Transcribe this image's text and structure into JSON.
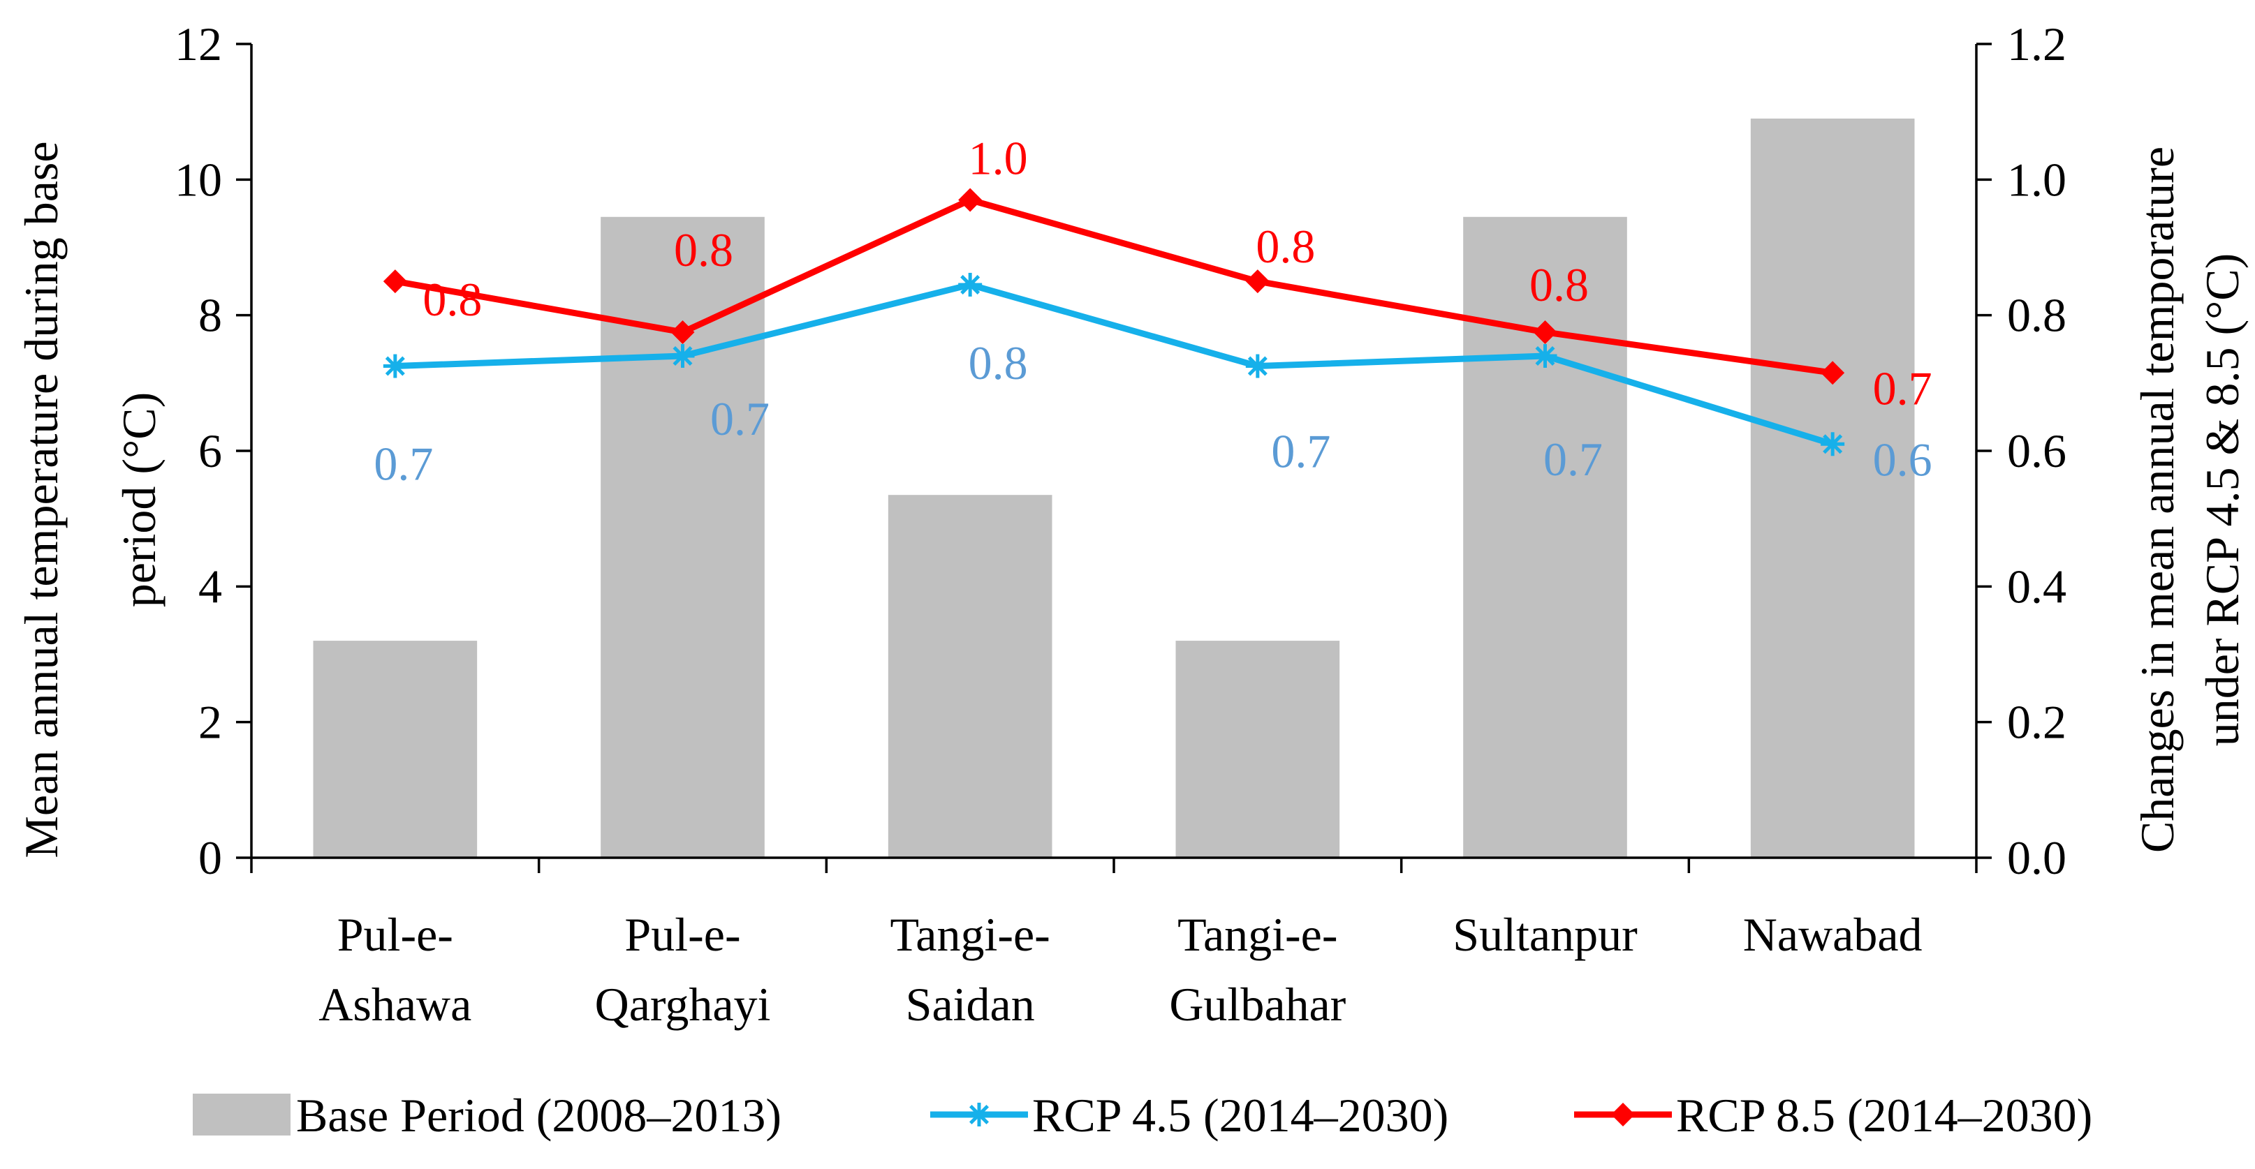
{
  "chart_data": {
    "type": "bar",
    "categories": [
      [
        "Pul-e-",
        "Ashawa"
      ],
      [
        "Pul-e-",
        "Qarghayi"
      ],
      [
        "Tangi-e-",
        "Saidan"
      ],
      [
        "Tangi-e-",
        "Gulbahar"
      ],
      [
        "Sultanpur"
      ],
      [
        "Nawabad"
      ]
    ],
    "series": [
      {
        "name": "Base Period (2008–2013)",
        "type": "bar",
        "axis": "left",
        "color": "#c0c0c0",
        "values": [
          3.2,
          9.45,
          5.35,
          3.2,
          9.45,
          10.9
        ]
      },
      {
        "name": "RCP 4.5 (2014–2030)",
        "type": "line",
        "axis": "right",
        "color": "#16b0ea",
        "label_color": "#5b9bd5",
        "marker": "asterisk",
        "values": [
          0.725,
          0.74,
          0.845,
          0.725,
          0.74,
          0.61
        ],
        "labels": [
          "0.7",
          "0.7",
          "0.8",
          "0.7",
          "0.7",
          "0.6"
        ]
      },
      {
        "name": "RCP 8.5 (2014–2030)",
        "type": "line",
        "axis": "right",
        "color": "#ff0000",
        "label_color": "#ff0000",
        "marker": "diamond",
        "values": [
          0.85,
          0.775,
          0.97,
          0.85,
          0.775,
          0.715
        ],
        "labels": [
          "0.8",
          "0.8",
          "1.0",
          "0.8",
          "0.8",
          "0.7"
        ]
      }
    ],
    "y_left": {
      "label": [
        "Mean annual temperature during base",
        "period (°C)"
      ],
      "ylim": [
        0,
        12
      ],
      "ticks": [
        0,
        2,
        4,
        6,
        8,
        10,
        12
      ],
      "tick_labels": [
        "0",
        "2",
        "4",
        "6",
        "8",
        "10",
        "12"
      ]
    },
    "y_right": {
      "label": [
        "Changes in mean annual temporature",
        "under RCP 4.5 & 8.5 (°C)"
      ],
      "ylim": [
        0,
        1.2
      ],
      "ticks": [
        0,
        0.2,
        0.4,
        0.6,
        0.8,
        1.0,
        1.2
      ],
      "tick_labels": [
        "0.0",
        "0.2",
        "0.4",
        "0.6",
        "0.8",
        "1.0",
        "1.2"
      ]
    },
    "xlabel": "",
    "grid": false,
    "legend_position": "bottom"
  }
}
